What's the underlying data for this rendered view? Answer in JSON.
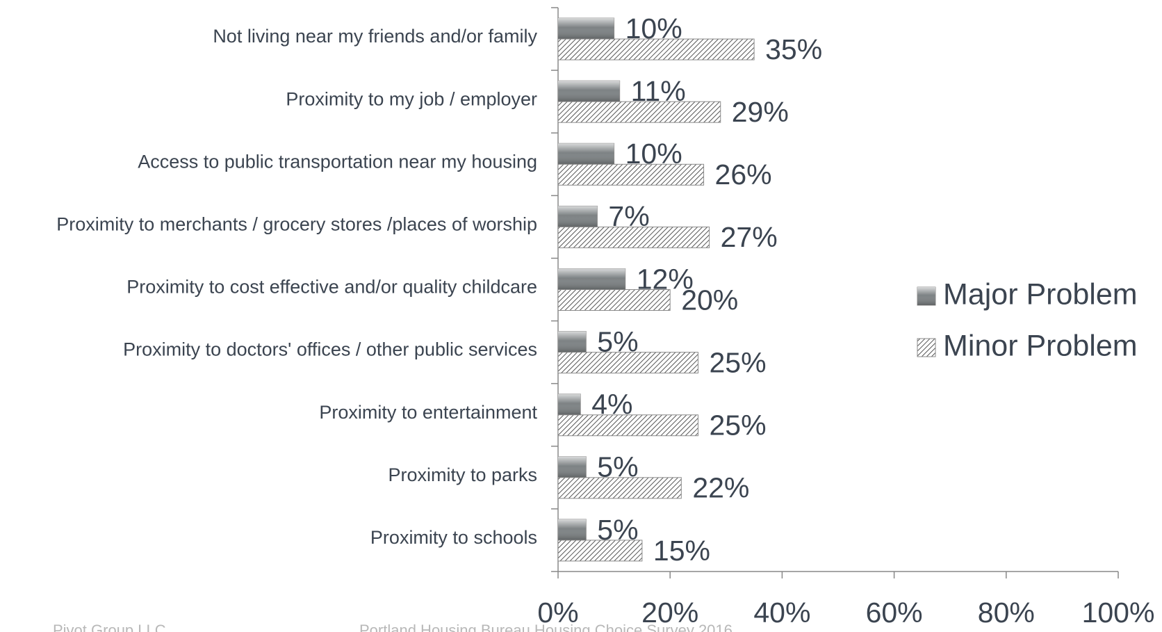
{
  "chart_data": {
    "type": "bar",
    "orientation": "horizontal",
    "categories": [
      "Not living near my friends and/or family",
      "Proximity to my job / employer",
      "Access to public transportation near my housing",
      "Proximity to merchants / grocery stores /places of worship",
      "Proximity to cost effective and/or quality childcare",
      "Proximity to doctors' offices / other public services",
      "Proximity to entertainment",
      "Proximity to parks",
      "Proximity to schools"
    ],
    "series": [
      {
        "name": "Major Problem",
        "color": "#7d8284",
        "values": [
          10,
          11,
          10,
          7,
          12,
          5,
          4,
          5,
          5
        ],
        "value_labels": [
          "10%",
          "11%",
          "10%",
          "7%",
          "12%",
          "5%",
          "4%",
          "5%",
          "5%"
        ]
      },
      {
        "name": "Minor Problem",
        "color": "#555555",
        "values": [
          35,
          29,
          26,
          27,
          20,
          25,
          25,
          22,
          15
        ],
        "value_labels": [
          "35%",
          "29%",
          "26%",
          "27%",
          "20%",
          "25%",
          "25%",
          "22%",
          "15%"
        ]
      }
    ],
    "xlim": [
      0,
      100
    ],
    "xticks": [
      {
        "value": 0,
        "label": "0%"
      },
      {
        "value": 20,
        "label": "20%"
      },
      {
        "value": 40,
        "label": "40%"
      },
      {
        "value": 60,
        "label": "60%"
      },
      {
        "value": 80,
        "label": "80%"
      },
      {
        "value": 100,
        "label": "100%"
      }
    ],
    "legend": "right",
    "footer": [
      "Pivot Group LLC",
      "Portland Housing Bureau Housing Choice Survey 2016"
    ]
  }
}
